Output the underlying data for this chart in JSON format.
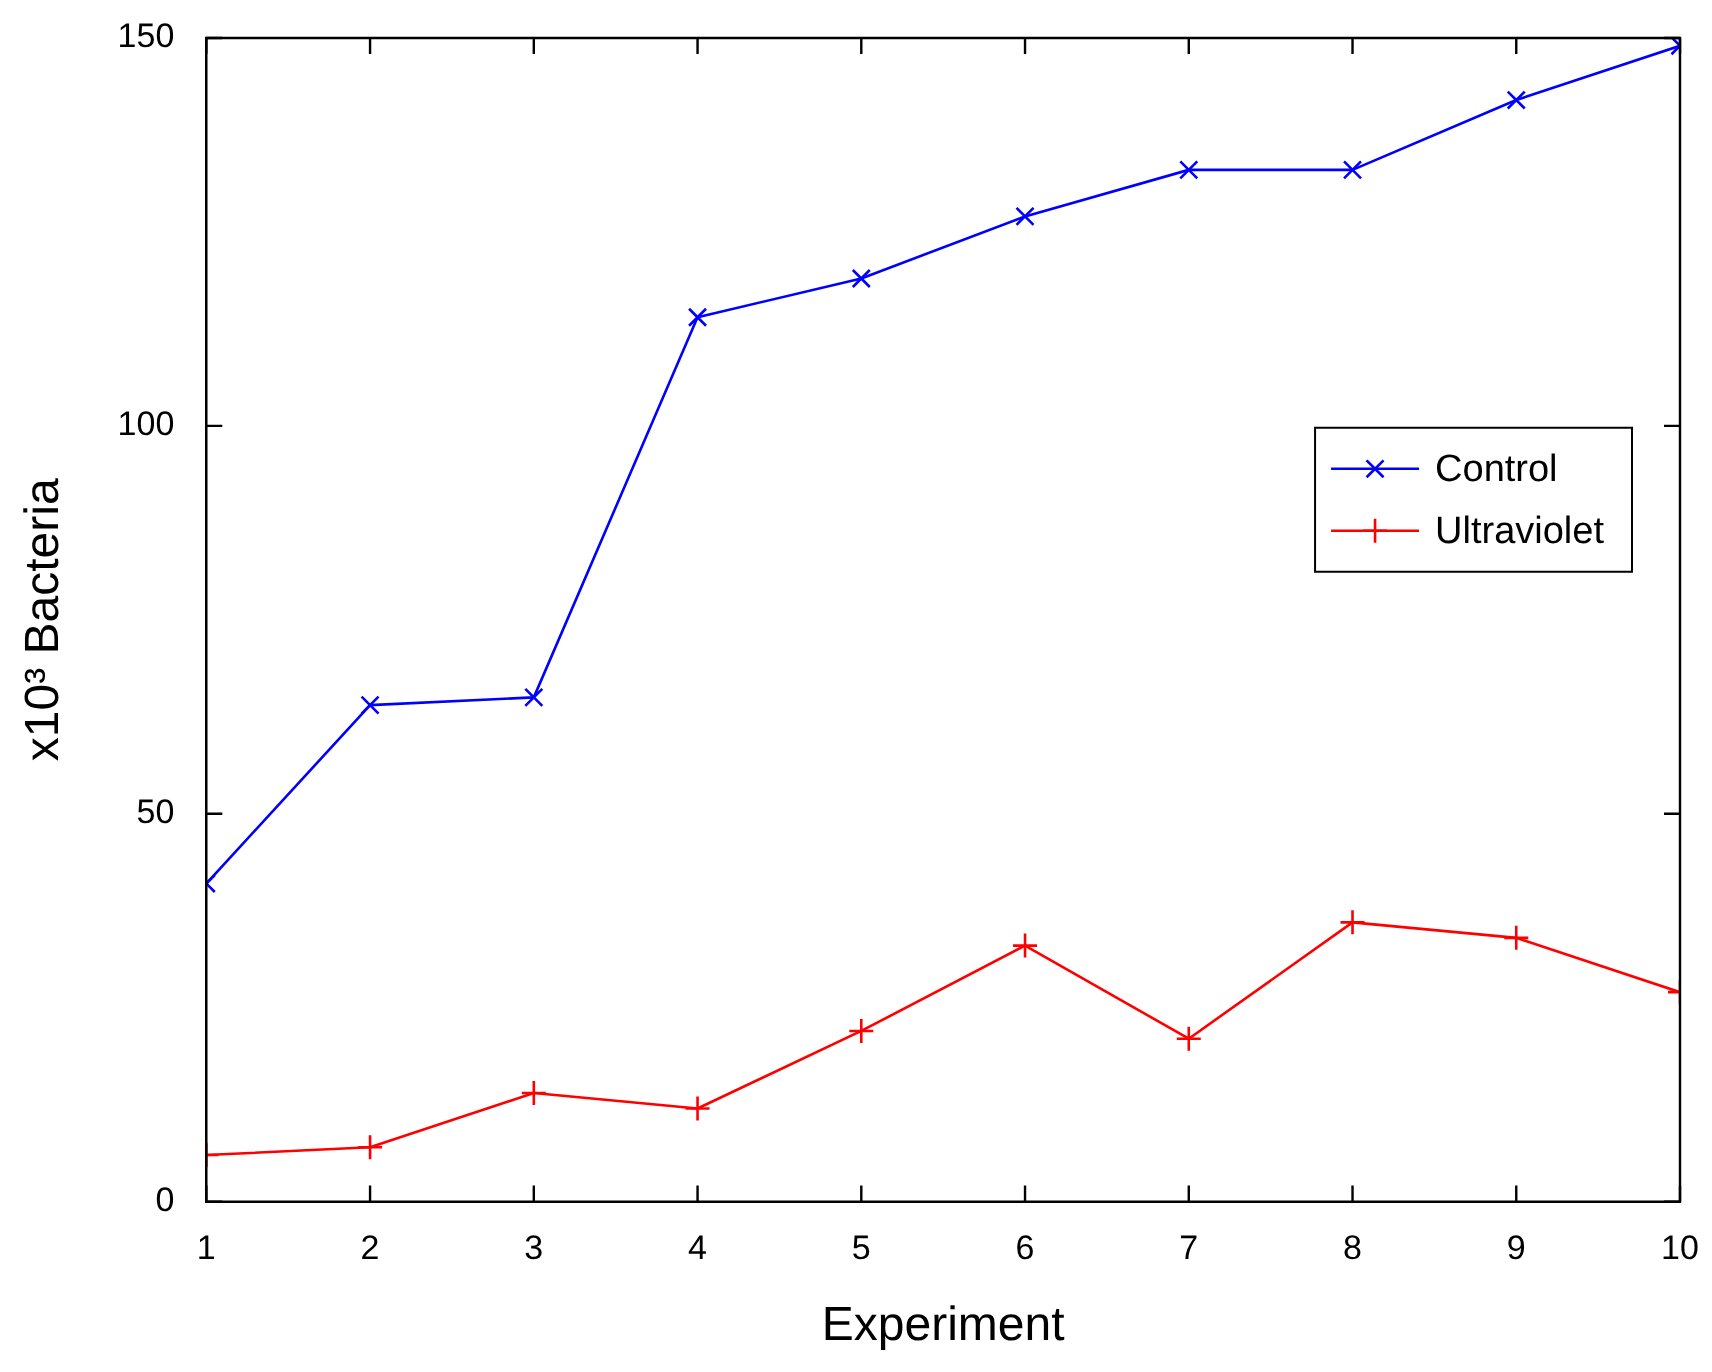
{
  "chart_data": {
    "type": "line",
    "xlabel": "Experiment",
    "ylabel": "x10³ Bacteria",
    "x": [
      1,
      2,
      3,
      4,
      5,
      6,
      7,
      8,
      9,
      10
    ],
    "series": [
      {
        "name": "Control",
        "color": "#0000ff",
        "marker": "cross",
        "values": [
          41,
          64,
          65,
          114,
          119,
          127,
          133,
          133,
          142,
          149
        ]
      },
      {
        "name": "Ultraviolet",
        "color": "#ff0000",
        "marker": "plus",
        "values": [
          6,
          7,
          14,
          12,
          22,
          33,
          21,
          36,
          34,
          27
        ]
      }
    ],
    "xlim": [
      1,
      10
    ],
    "xticks": [
      1,
      2,
      3,
      4,
      5,
      6,
      7,
      8,
      9,
      10
    ],
    "ylim": [
      0,
      150
    ],
    "yticks": [
      0,
      50,
      100,
      150
    ],
    "grid": false,
    "legend": "right",
    "line_style": "solid"
  }
}
